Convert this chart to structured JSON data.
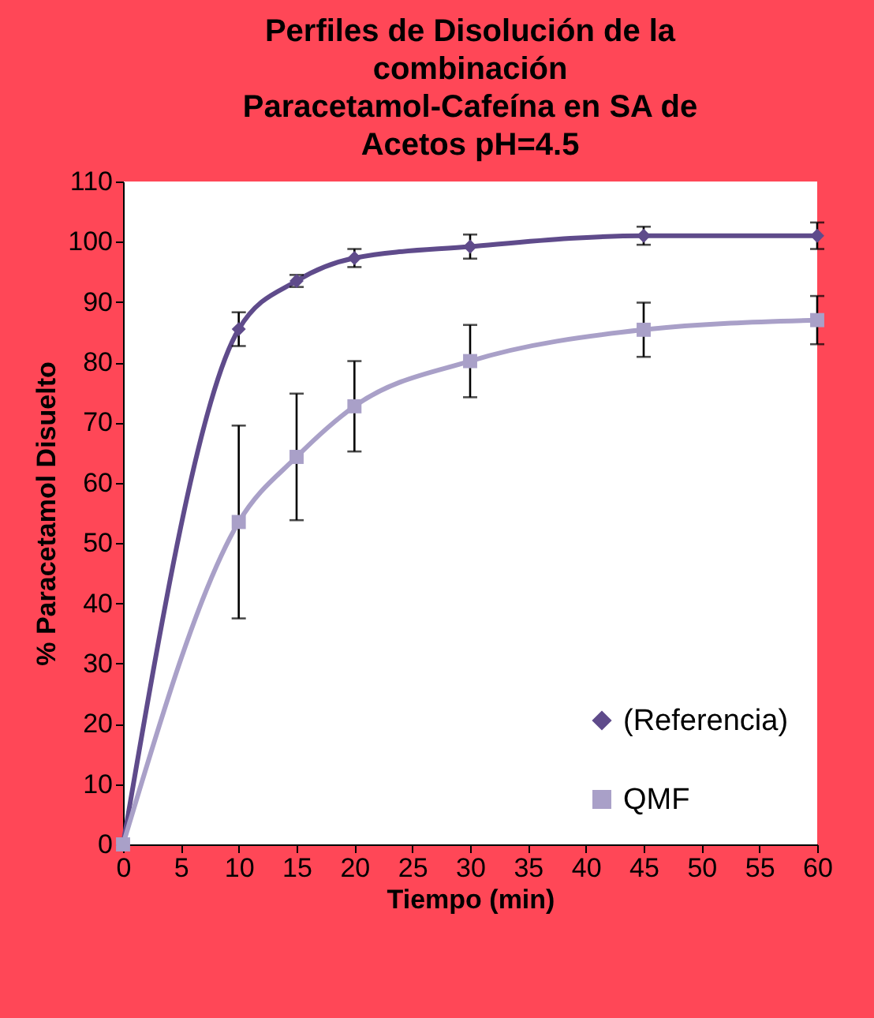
{
  "chart_data": {
    "type": "line",
    "title": "Perfiles de Disolución de la combinación Paracetamol-Cafeína en SA de Acetos pH=4.5",
    "xlabel": "Tiempo (min)",
    "ylabel": "% Paracetamol Disuelto",
    "x": [
      0,
      10,
      15,
      20,
      30,
      45,
      60
    ],
    "xlim": [
      0,
      60
    ],
    "xticks": [
      0,
      5,
      10,
      15,
      20,
      25,
      30,
      35,
      40,
      45,
      50,
      55,
      60
    ],
    "ylim": [
      0,
      110
    ],
    "yticks": [
      0,
      10,
      20,
      30,
      40,
      50,
      60,
      70,
      80,
      90,
      100,
      110
    ],
    "grid": false,
    "legend": "bottom right",
    "line_style": "solid",
    "series": [
      {
        "name": "(Referencia)",
        "color": "#5f4b8b",
        "marker": "diamond",
        "values": [
          0,
          85.5,
          93.5,
          97.3,
          99.2,
          101,
          101
        ],
        "errors": [
          null,
          2.8,
          1,
          1.5,
          2,
          1.5,
          2.2
        ]
      },
      {
        "name": "QMF",
        "color": "#a9a0c8",
        "marker": "square",
        "values": [
          0,
          53.5,
          64.3,
          72.7,
          80.2,
          85.4,
          87
        ],
        "errors": [
          null,
          16,
          10.5,
          7.5,
          6,
          4.5,
          4
        ]
      }
    ]
  }
}
